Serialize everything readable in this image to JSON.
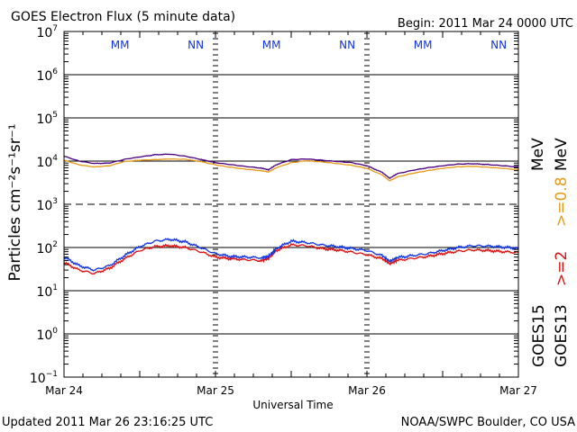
{
  "chart_data": {
    "type": "line",
    "title": "GOES Electron Flux (5 minute data)",
    "begin_label": "Begin: 2011 Mar 24 0000 UTC",
    "xlabel": "Universal Time",
    "ylabel": "Particles cm⁻²s⁻¹sr⁻¹",
    "y_scale": "log",
    "ylim": [
      0.1,
      10000000
    ],
    "y_ticks": [
      {
        "base": "10",
        "exp": "7"
      },
      {
        "base": "10",
        "exp": "6"
      },
      {
        "base": "10",
        "exp": "5"
      },
      {
        "base": "10",
        "exp": "4"
      },
      {
        "base": "10",
        "exp": "3"
      },
      {
        "base": "10",
        "exp": "2"
      },
      {
        "base": "10",
        "exp": "1"
      },
      {
        "base": "10",
        "exp": "0"
      },
      {
        "base": "10",
        "exp": "−1"
      }
    ],
    "x_ticks": [
      "Mar 24",
      "Mar 25",
      "Mar 26",
      "Mar 27"
    ],
    "xlim_days": [
      0,
      3
    ],
    "threshold": 1000,
    "markers": [
      {
        "text": "MM",
        "day": 0.37,
        "color": "blue"
      },
      {
        "text": "NN",
        "day": 0.87,
        "color": "blue"
      },
      {
        "text": "MM",
        "day": 1.37,
        "color": "blue"
      },
      {
        "text": "NN",
        "day": 1.87,
        "color": "blue"
      },
      {
        "text": "MM",
        "day": 2.37,
        "color": "blue"
      },
      {
        "text": "NN",
        "day": 2.87,
        "color": "blue"
      }
    ],
    "right_labels": {
      "mev_08": "MeV",
      "thr_08": ">=0.8",
      "mev_2": "MeV",
      "thr_2": ">=2",
      "goes15": "GOES15",
      "goes13": "GOES13"
    },
    "series": [
      {
        "name": "GOES13 >=0.8 MeV",
        "color": "#e89a1a",
        "x": [
          0,
          0.1,
          0.2,
          0.3,
          0.4,
          0.5,
          0.6,
          0.7,
          0.8,
          0.9,
          1.0,
          1.1,
          1.2,
          1.3,
          1.35,
          1.4,
          1.5,
          1.6,
          1.7,
          1.8,
          1.9,
          2.0,
          2.1,
          2.15,
          2.2,
          2.3,
          2.4,
          2.5,
          2.6,
          2.7,
          2.8,
          2.9,
          3.0
        ],
        "y": [
          10500,
          8200,
          7300,
          7800,
          9800,
          10500,
          10800,
          11200,
          11000,
          9800,
          8200,
          7200,
          6500,
          6000,
          5600,
          7000,
          9200,
          10200,
          9600,
          8800,
          8000,
          6800,
          4800,
          3500,
          4300,
          5200,
          6000,
          6800,
          7400,
          7600,
          7200,
          6800,
          6300
        ]
      },
      {
        "name": "GOES15 >=0.8 MeV",
        "color": "#4b0082",
        "x": [
          0,
          0.1,
          0.2,
          0.3,
          0.4,
          0.5,
          0.6,
          0.7,
          0.8,
          0.9,
          1.0,
          1.1,
          1.2,
          1.3,
          1.35,
          1.4,
          1.5,
          1.6,
          1.7,
          1.8,
          1.9,
          2.0,
          2.1,
          2.15,
          2.2,
          2.3,
          2.4,
          2.5,
          2.6,
          2.7,
          2.8,
          2.9,
          3.0
        ],
        "y": [
          13000,
          10000,
          8800,
          9000,
          11000,
          12500,
          14000,
          14500,
          13000,
          11000,
          9200,
          8300,
          7500,
          6900,
          6300,
          8200,
          10800,
          11200,
          10500,
          9800,
          9200,
          7800,
          5500,
          4000,
          5100,
          6100,
          7000,
          7800,
          8500,
          8700,
          8300,
          7800,
          7300
        ]
      },
      {
        "name": "GOES13 >=2 MeV",
        "color": "#dd1111",
        "x": [
          0,
          0.1,
          0.2,
          0.3,
          0.4,
          0.5,
          0.6,
          0.7,
          0.8,
          0.9,
          1.0,
          1.1,
          1.2,
          1.3,
          1.35,
          1.4,
          1.5,
          1.6,
          1.7,
          1.8,
          1.9,
          2.0,
          2.1,
          2.15,
          2.2,
          2.3,
          2.4,
          2.5,
          2.6,
          2.7,
          2.8,
          2.9,
          3.0
        ],
        "y": [
          45,
          30,
          25,
          33,
          55,
          85,
          105,
          110,
          100,
          80,
          60,
          55,
          52,
          50,
          55,
          85,
          115,
          110,
          95,
          88,
          78,
          68,
          55,
          42,
          50,
          56,
          62,
          72,
          82,
          88,
          85,
          80,
          76
        ]
      },
      {
        "name": "GOES15 >=2 MeV",
        "color": "#1133dd",
        "x": [
          0,
          0.1,
          0.2,
          0.3,
          0.4,
          0.5,
          0.6,
          0.7,
          0.8,
          0.9,
          1.0,
          1.1,
          1.2,
          1.3,
          1.35,
          1.4,
          1.5,
          1.6,
          1.7,
          1.8,
          1.9,
          2.0,
          2.1,
          2.15,
          2.2,
          2.3,
          2.4,
          2.5,
          2.6,
          2.7,
          2.8,
          2.9,
          3.0
        ],
        "y": [
          60,
          38,
          30,
          38,
          65,
          105,
          140,
          155,
          135,
          100,
          72,
          62,
          60,
          58,
          62,
          95,
          140,
          130,
          115,
          105,
          95,
          85,
          65,
          48,
          58,
          65,
          72,
          85,
          100,
          110,
          108,
          102,
          95
        ]
      }
    ]
  },
  "footer": {
    "updated": "Updated 2011 Mar 26 23:16:25 UTC",
    "source": "NOAA/SWPC Boulder, CO USA"
  }
}
